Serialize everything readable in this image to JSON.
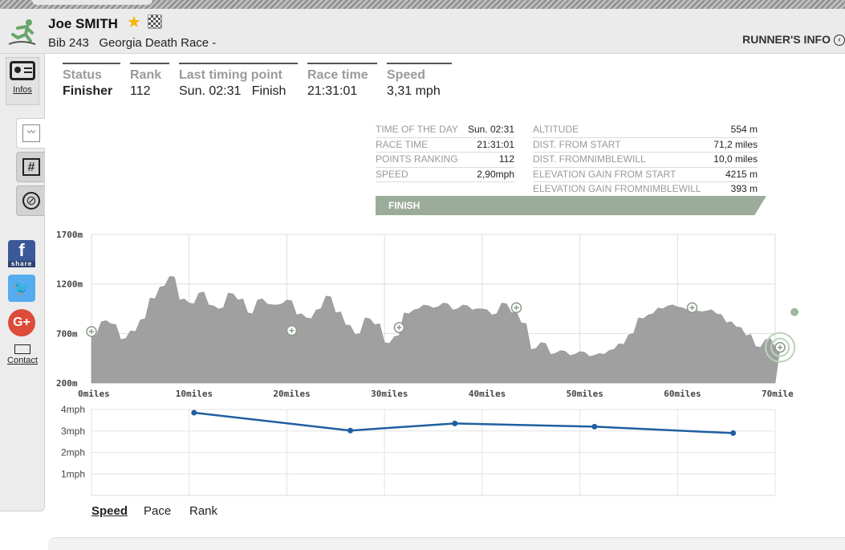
{
  "header": {
    "name": "Joe SMITH",
    "bib_label": "Bib 243",
    "race": "Georgia Death Race -",
    "runner_info": "RUNNER'S INFO",
    "star_icon": "star-icon",
    "flag_icon": "checkered-flag-icon"
  },
  "sidebar": {
    "infos_label": "Infos",
    "contact_label": "Contact",
    "share_label": "share",
    "tabs": [
      "profile-chart-icon",
      "grid-icon",
      "compass-icon"
    ]
  },
  "stats": {
    "status": {
      "label": "Status",
      "value": "Finisher"
    },
    "rank": {
      "label": "Rank",
      "value": "112"
    },
    "last_timing": {
      "label": "Last timing point",
      "value": "Sun. 02:31   Finish"
    },
    "race_time": {
      "label": "Race time",
      "value": "21:31:01"
    },
    "speed": {
      "label": "Speed",
      "value": "3,31 mph"
    }
  },
  "info_table": {
    "left": [
      {
        "label": "TIME OF THE DAY",
        "value": "Sun. 02:31"
      },
      {
        "label": "RACE TIME",
        "value": "21:31:01"
      },
      {
        "label": "POINTS RANKING",
        "value": "112"
      },
      {
        "label": "SPEED",
        "value": "2,90mph"
      }
    ],
    "right": [
      {
        "label": "ALTITUDE",
        "value": "554 m"
      },
      {
        "label": "DIST. FROM START",
        "value": "71,2 miles"
      },
      {
        "label": "DIST. FROMNIMBLEWILL",
        "value": "10,0 miles"
      },
      {
        "label": "ELEVATION GAIN FROM START",
        "value": "4215 m"
      },
      {
        "label": "ELEVATION GAIN FROMNIMBLEWILL",
        "value": "393 m"
      }
    ],
    "finish_label": "FINISH"
  },
  "bottom_tabs": {
    "speed": "Speed",
    "pace": "Pace",
    "rank": "Rank"
  },
  "colors": {
    "profile_fill": "#a0a0a0",
    "speed_line": "#1f5fa0",
    "finish_bar": "#9cac9a",
    "accent_green": "#6aa56a"
  },
  "chart_data": [
    {
      "type": "area",
      "ylim": [
        200,
        1700
      ],
      "xlim": [
        0,
        70
      ],
      "y_ticks": [
        "200m",
        "700m",
        "1200m",
        "1700m"
      ],
      "x_ticks": [
        "0miles",
        "10miles",
        "20miles",
        "30miles",
        "40miles",
        "50miles",
        "60miles",
        "70mile"
      ],
      "x": [
        0,
        1,
        2,
        3,
        4,
        5,
        6,
        7,
        8,
        9,
        10,
        11,
        12,
        13,
        14,
        15,
        16,
        17,
        18,
        19,
        20,
        21,
        22,
        23,
        24,
        25,
        26,
        27,
        28,
        29,
        30,
        31,
        32,
        33,
        34,
        35,
        36,
        37,
        38,
        39,
        40,
        41,
        42,
        43,
        44,
        45,
        46,
        47,
        48,
        49,
        50,
        51,
        52,
        53,
        54,
        55,
        56,
        57,
        58,
        59,
        60,
        61,
        62,
        63,
        64,
        65,
        66,
        67,
        68,
        69,
        70
      ],
      "y": [
        680,
        830,
        790,
        650,
        720,
        850,
        1050,
        1180,
        1270,
        1050,
        1000,
        1120,
        980,
        960,
        1100,
        1050,
        900,
        1050,
        990,
        1000,
        1030,
        900,
        850,
        950,
        1070,
        920,
        780,
        700,
        850,
        800,
        600,
        680,
        900,
        950,
        980,
        970,
        1000,
        950,
        980,
        950,
        940,
        900,
        1000,
        920,
        800,
        550,
        600,
        500,
        520,
        490,
        510,
        480,
        490,
        540,
        590,
        700,
        850,
        900,
        950,
        990,
        960,
        950,
        920,
        940,
        890,
        820,
        760,
        690,
        560,
        650,
        554
      ],
      "markers_x": [
        0,
        20.5,
        31.5,
        43.5,
        61.5,
        70.5
      ],
      "markers_y": [
        720,
        730,
        760,
        960,
        960,
        560
      ]
    },
    {
      "type": "line",
      "ylim": [
        0,
        4
      ],
      "xlim": [
        0,
        70
      ],
      "y_ticks": [
        "1mph",
        "2mph",
        "3mph",
        "4mph"
      ],
      "x": [
        10.5,
        26.5,
        37.2,
        51.5,
        65.7
      ],
      "y": [
        3.85,
        3.02,
        3.35,
        3.2,
        2.9
      ]
    }
  ]
}
